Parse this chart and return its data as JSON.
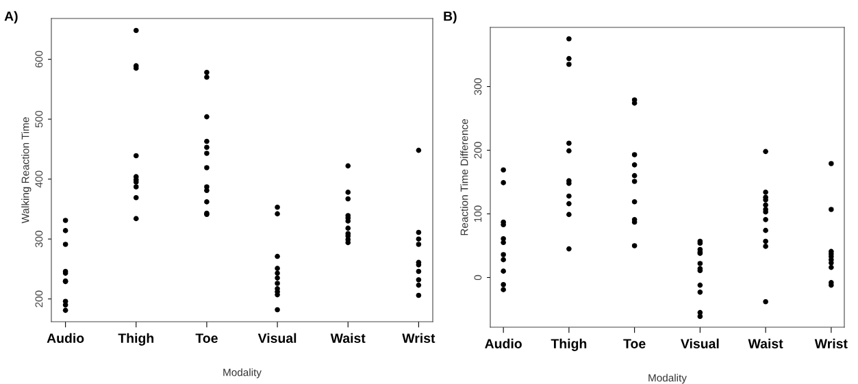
{
  "chart_data": [
    {
      "type": "scatter",
      "title": "A)",
      "xlabel": "Modality",
      "ylabel": "Walking Reaction Time",
      "categories": [
        "Audio",
        "Thigh",
        "Toe",
        "Visual",
        "Waist",
        "Wrist"
      ],
      "ylim": [
        162,
        668
      ],
      "yticks": [
        200,
        300,
        400,
        500,
        600
      ],
      "marker": "circle",
      "series": [
        {
          "color": "#000000",
          "x": [
            "Audio",
            "Audio",
            "Audio",
            "Audio",
            "Audio",
            "Audio",
            "Audio",
            "Audio",
            "Audio",
            "Audio",
            "Thigh",
            "Thigh",
            "Thigh",
            "Thigh",
            "Thigh",
            "Thigh",
            "Thigh",
            "Thigh",
            "Thigh",
            "Thigh",
            "Toe",
            "Toe",
            "Toe",
            "Toe",
            "Toe",
            "Toe",
            "Toe",
            "Toe",
            "Toe",
            "Toe",
            "Toe",
            "Toe",
            "Visual",
            "Visual",
            "Visual",
            "Visual",
            "Visual",
            "Visual",
            "Visual",
            "Visual",
            "Visual",
            "Visual",
            "Visual",
            "Waist",
            "Waist",
            "Waist",
            "Waist",
            "Waist",
            "Waist",
            "Waist",
            "Waist",
            "Waist",
            "Waist",
            "Waist",
            "Wrist",
            "Wrist",
            "Wrist",
            "Wrist",
            "Wrist",
            "Wrist",
            "Wrist",
            "Wrist",
            "Wrist",
            "Wrist"
          ],
          "values": [
            331,
            314,
            291,
            246,
            243,
            230,
            229,
            196,
            190,
            181,
            648,
            589,
            585,
            439,
            404,
            399,
            395,
            387,
            369,
            334,
            578,
            570,
            504,
            463,
            453,
            443,
            419,
            387,
            381,
            362,
            343,
            341,
            353,
            342,
            271,
            251,
            243,
            235,
            226,
            217,
            212,
            207,
            182,
            422,
            378,
            367,
            339,
            335,
            330,
            318,
            309,
            305,
            299,
            294,
            448,
            311,
            300,
            291,
            261,
            257,
            246,
            232,
            223,
            206
          ]
        }
      ]
    },
    {
      "type": "scatter",
      "title": "B)",
      "xlabel": "Modality",
      "ylabel": "Reaction Time Difference",
      "categories": [
        "Audio",
        "Thigh",
        "Toe",
        "Visual",
        "Waist",
        "Wrist"
      ],
      "ylim": [
        -78,
        393
      ],
      "yticks": [
        0,
        100,
        200,
        300
      ],
      "marker": "circle",
      "series": [
        {
          "color": "#000000",
          "x": [
            "Audio",
            "Audio",
            "Audio",
            "Audio",
            "Audio",
            "Audio",
            "Audio",
            "Audio",
            "Audio",
            "Audio",
            "Audio",
            "Thigh",
            "Thigh",
            "Thigh",
            "Thigh",
            "Thigh",
            "Thigh",
            "Thigh",
            "Thigh",
            "Thigh",
            "Thigh",
            "Thigh",
            "Toe",
            "Toe",
            "Toe",
            "Toe",
            "Toe",
            "Toe",
            "Toe",
            "Toe",
            "Toe",
            "Toe",
            "Visual",
            "Visual",
            "Visual",
            "Visual",
            "Visual",
            "Visual",
            "Visual",
            "Visual",
            "Visual",
            "Visual",
            "Visual",
            "Visual",
            "Waist",
            "Waist",
            "Waist",
            "Waist",
            "Waist",
            "Waist",
            "Waist",
            "Waist",
            "Waist",
            "Waist",
            "Waist",
            "Waist",
            "Wrist",
            "Wrist",
            "Wrist",
            "Wrist",
            "Wrist",
            "Wrist",
            "Wrist",
            "Wrist",
            "Wrist",
            "Wrist"
          ],
          "values": [
            169,
            149,
            87,
            83,
            61,
            55,
            36,
            28,
            10,
            -11,
            -19,
            375,
            344,
            335,
            211,
            199,
            152,
            148,
            128,
            116,
            99,
            45,
            279,
            274,
            193,
            177,
            160,
            151,
            119,
            91,
            87,
            50,
            57,
            54,
            44,
            40,
            38,
            22,
            14,
            11,
            -12,
            -23,
            -55,
            -61,
            198,
            134,
            126,
            122,
            114,
            107,
            103,
            91,
            74,
            57,
            49,
            -38,
            179,
            107,
            41,
            37,
            33,
            28,
            23,
            16,
            -8,
            -12
          ]
        }
      ]
    }
  ]
}
